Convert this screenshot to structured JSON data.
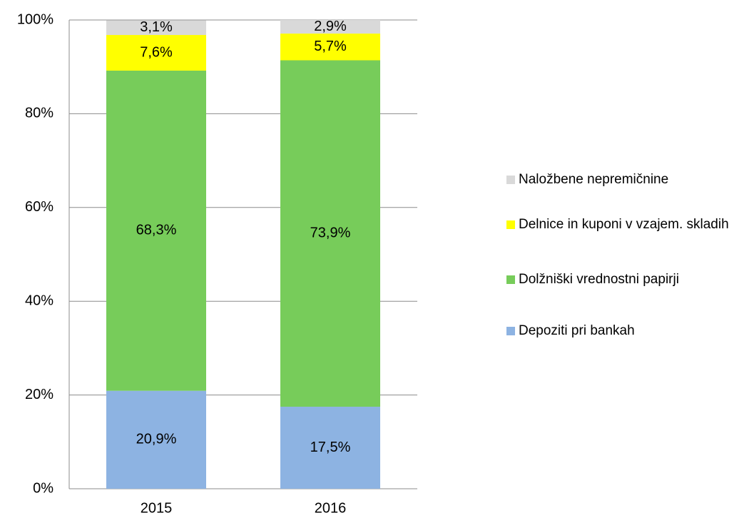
{
  "chart_data": {
    "type": "stacked_bar",
    "categories": [
      "2015",
      "2016"
    ],
    "series": [
      {
        "name": "Depoziti pri bankah",
        "color": "#8db3e2",
        "values": [
          20.9,
          17.5
        ],
        "value_labels": [
          "20,9%",
          "17,5%"
        ]
      },
      {
        "name": "Dolžniški vrednostni papirji",
        "color": "#77cc5a",
        "values": [
          68.3,
          73.9
        ],
        "value_labels": [
          "68,3%",
          "73,9%"
        ]
      },
      {
        "name": "Delnice in kuponi v vzajem. skladih",
        "color": "#ffff00",
        "values": [
          7.6,
          5.7
        ],
        "value_labels": [
          "7,6%",
          "5,7%"
        ]
      },
      {
        "name": "Naložbene nepremičnine",
        "color": "#d9d9d9",
        "values": [
          3.1,
          2.9
        ],
        "value_labels": [
          "3,1%",
          "2,9%"
        ]
      }
    ],
    "ylim": [
      0,
      100
    ],
    "yticks": [
      {
        "value": 0,
        "label": "0%"
      },
      {
        "value": 20,
        "label": "20%"
      },
      {
        "value": 40,
        "label": "40%"
      },
      {
        "value": 60,
        "label": "60%"
      },
      {
        "value": 80,
        "label": "80%"
      },
      {
        "value": 100,
        "label": "100%"
      }
    ],
    "grid": true,
    "legend": "right"
  }
}
